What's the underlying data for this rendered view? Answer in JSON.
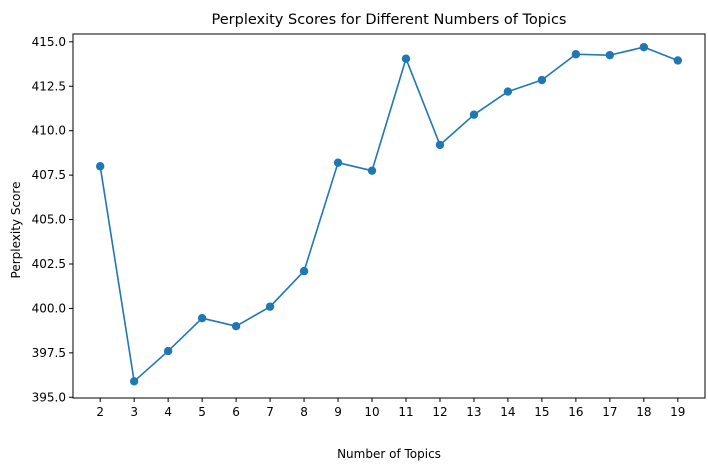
{
  "chart_data": {
    "type": "line",
    "title": "Perplexity Scores for Different Numbers of Topics",
    "xlabel": "Number of Topics",
    "ylabel": "Perplexity Score",
    "x": [
      2,
      3,
      4,
      5,
      6,
      7,
      8,
      9,
      10,
      11,
      12,
      13,
      14,
      15,
      16,
      17,
      18,
      19
    ],
    "series": [
      {
        "values": [
          408.0,
          395.9,
          397.6,
          399.45,
          399.0,
          400.1,
          402.1,
          408.2,
          407.75,
          414.05,
          409.2,
          410.9,
          412.2,
          412.85,
          414.3,
          414.25,
          414.7,
          413.95
        ],
        "color": "#1f77b4",
        "marker": "circle"
      }
    ],
    "xticks": [
      "2",
      "3",
      "4",
      "5",
      "6",
      "7",
      "8",
      "9",
      "10",
      "11",
      "12",
      "13",
      "14",
      "15",
      "16",
      "17",
      "18",
      "19"
    ],
    "yticks": [
      "395.0",
      "397.5",
      "400.0",
      "402.5",
      "405.0",
      "407.5",
      "410.0",
      "412.5",
      "415.0"
    ],
    "ytick_values": [
      395.0,
      397.5,
      400.0,
      402.5,
      405.0,
      407.5,
      410.0,
      412.5,
      415.0
    ],
    "xlim": [
      1.2,
      19.8
    ],
    "ylim": [
      394.96,
      415.44
    ],
    "grid": false,
    "legend": "none"
  }
}
